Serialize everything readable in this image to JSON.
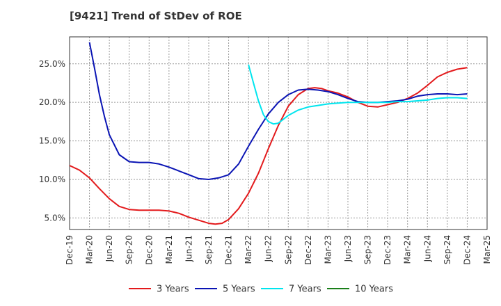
{
  "chart_data": {
    "type": "line",
    "title": "[9421]  Trend of StDev of ROE",
    "x_ticks": [
      "Dec-19",
      "Mar-20",
      "Jun-20",
      "Sep-20",
      "Dec-20",
      "Mar-21",
      "Jun-21",
      "Sep-21",
      "Dec-21",
      "Mar-22",
      "Jun-22",
      "Sep-22",
      "Dec-22",
      "Mar-23",
      "Jun-23",
      "Sep-23",
      "Dec-23",
      "Mar-24",
      "Jun-24",
      "Sep-24",
      "Dec-24",
      "Mar-25"
    ],
    "y_ticks": [
      "5.0%",
      "10.0%",
      "15.0%",
      "20.0%",
      "25.0%"
    ],
    "ylim": [
      3.5,
      28.5
    ],
    "y_tick_values": [
      5,
      10,
      15,
      20,
      25
    ],
    "grid": true,
    "legend_position": "bottom",
    "series": [
      {
        "name": "3 Years",
        "color": "#e31a1c",
        "x": [
          0,
          0.5,
          1,
          1.5,
          2,
          2.5,
          3,
          3.5,
          4,
          4.5,
          5,
          5.5,
          6,
          6.5,
          7,
          7.33,
          7.67,
          8,
          8.5,
          9,
          9.5,
          10,
          10.5,
          11,
          11.5,
          12,
          12.33,
          12.67,
          13,
          13.5,
          14,
          14.5,
          15,
          15.5,
          16,
          16.5,
          17,
          17.5,
          18,
          18.5,
          19,
          19.5,
          20
        ],
        "values": [
          11.8,
          11.2,
          10.2,
          8.8,
          7.5,
          6.5,
          6.1,
          6.0,
          6.0,
          6.0,
          5.9,
          5.6,
          5.1,
          4.7,
          4.3,
          4.2,
          4.3,
          4.8,
          6.2,
          8.2,
          10.8,
          14.0,
          17.0,
          19.5,
          21.0,
          21.8,
          21.9,
          21.8,
          21.5,
          21.2,
          20.7,
          20.0,
          19.5,
          19.4,
          19.7,
          20.0,
          20.5,
          21.2,
          22.2,
          23.3,
          23.9,
          24.3,
          24.5
        ]
      },
      {
        "name": "5 Years",
        "color": "#0a14b4",
        "x": [
          1,
          1.25,
          1.5,
          1.75,
          2,
          2.5,
          3,
          3.5,
          4,
          4.5,
          5,
          5.5,
          6,
          6.5,
          7,
          7.5,
          8,
          8.5,
          9,
          9.5,
          10,
          10.5,
          11,
          11.5,
          12,
          12.5,
          13,
          13.5,
          14,
          14.5,
          15,
          15.5,
          16,
          16.5,
          17,
          17.5,
          18,
          18.5,
          19,
          19.5,
          20
        ],
        "values": [
          27.8,
          24.5,
          21.0,
          18.2,
          15.8,
          13.2,
          12.3,
          12.2,
          12.2,
          12.0,
          11.6,
          11.1,
          10.6,
          10.1,
          10.0,
          10.2,
          10.6,
          12.0,
          14.3,
          16.5,
          18.5,
          20.0,
          21.0,
          21.6,
          21.7,
          21.6,
          21.4,
          21.0,
          20.5,
          20.1,
          20.0,
          20.0,
          20.1,
          20.2,
          20.4,
          20.8,
          21.0,
          21.1,
          21.1,
          21.0,
          21.1
        ]
      },
      {
        "name": "7 Years",
        "color": "#00e5ee",
        "x": [
          9,
          9.25,
          9.5,
          9.75,
          10,
          10.25,
          10.5,
          10.75,
          11,
          11.5,
          12,
          12.5,
          13,
          13.5,
          14,
          14.5,
          15,
          15.5,
          16,
          16.5,
          17,
          17.5,
          18,
          18.5,
          19,
          19.5,
          20
        ],
        "values": [
          24.9,
          22.5,
          20.2,
          18.4,
          17.5,
          17.2,
          17.3,
          17.8,
          18.3,
          19.0,
          19.4,
          19.6,
          19.8,
          19.9,
          20.0,
          20.0,
          20.0,
          20.0,
          20.0,
          20.1,
          20.1,
          20.2,
          20.3,
          20.5,
          20.6,
          20.6,
          20.5
        ]
      },
      {
        "name": "10 Years",
        "color": "#1a7f1a",
        "x": [],
        "values": []
      }
    ]
  }
}
